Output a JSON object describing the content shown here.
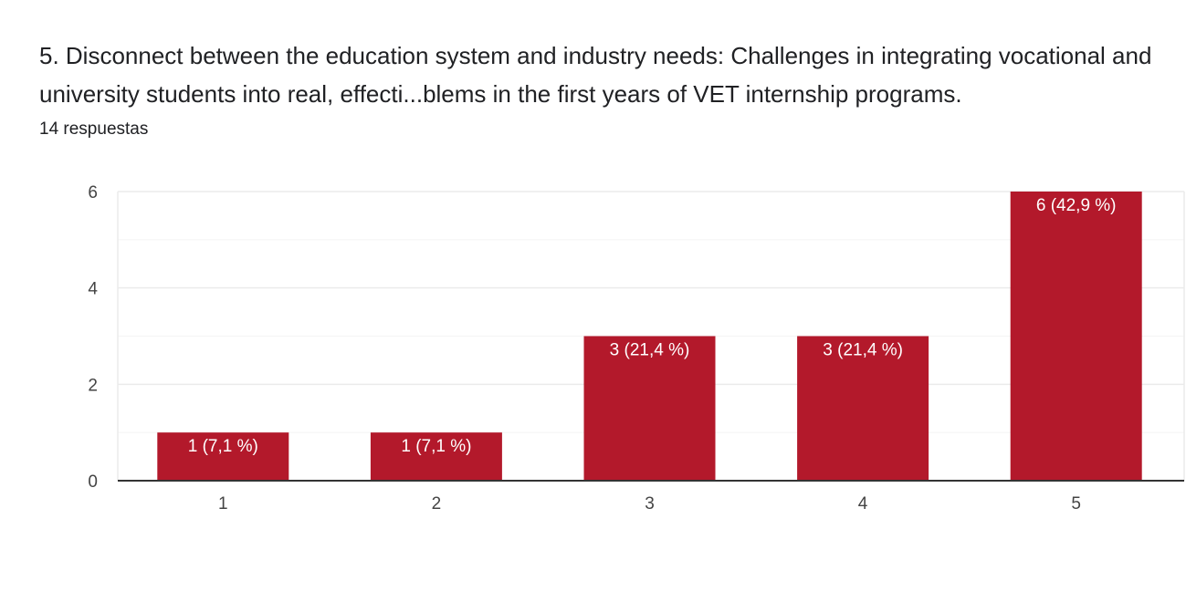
{
  "question": {
    "title": "5. Disconnect between the education system and industry needs: Challenges in integrating vocational and university students into real, effecti...blems in the first years of VET internship programs.",
    "response_count": "14 respuestas"
  },
  "colors": {
    "bar": "#b3192b",
    "grid": "#ebebeb",
    "axis": "#333333"
  },
  "chart_data": {
    "type": "bar",
    "categories": [
      "1",
      "2",
      "3",
      "4",
      "5"
    ],
    "values": [
      1,
      1,
      3,
      3,
      6
    ],
    "data_labels": [
      "1 (7,1 %)",
      "1 (7,1 %)",
      "3 (21,4 %)",
      "3 (21,4 %)",
      "6 (42,9 %)"
    ],
    "y_ticks": [
      0,
      2,
      4,
      6
    ],
    "ylim": [
      0,
      6
    ],
    "grid": true,
    "title": "",
    "xlabel": "",
    "ylabel": ""
  }
}
